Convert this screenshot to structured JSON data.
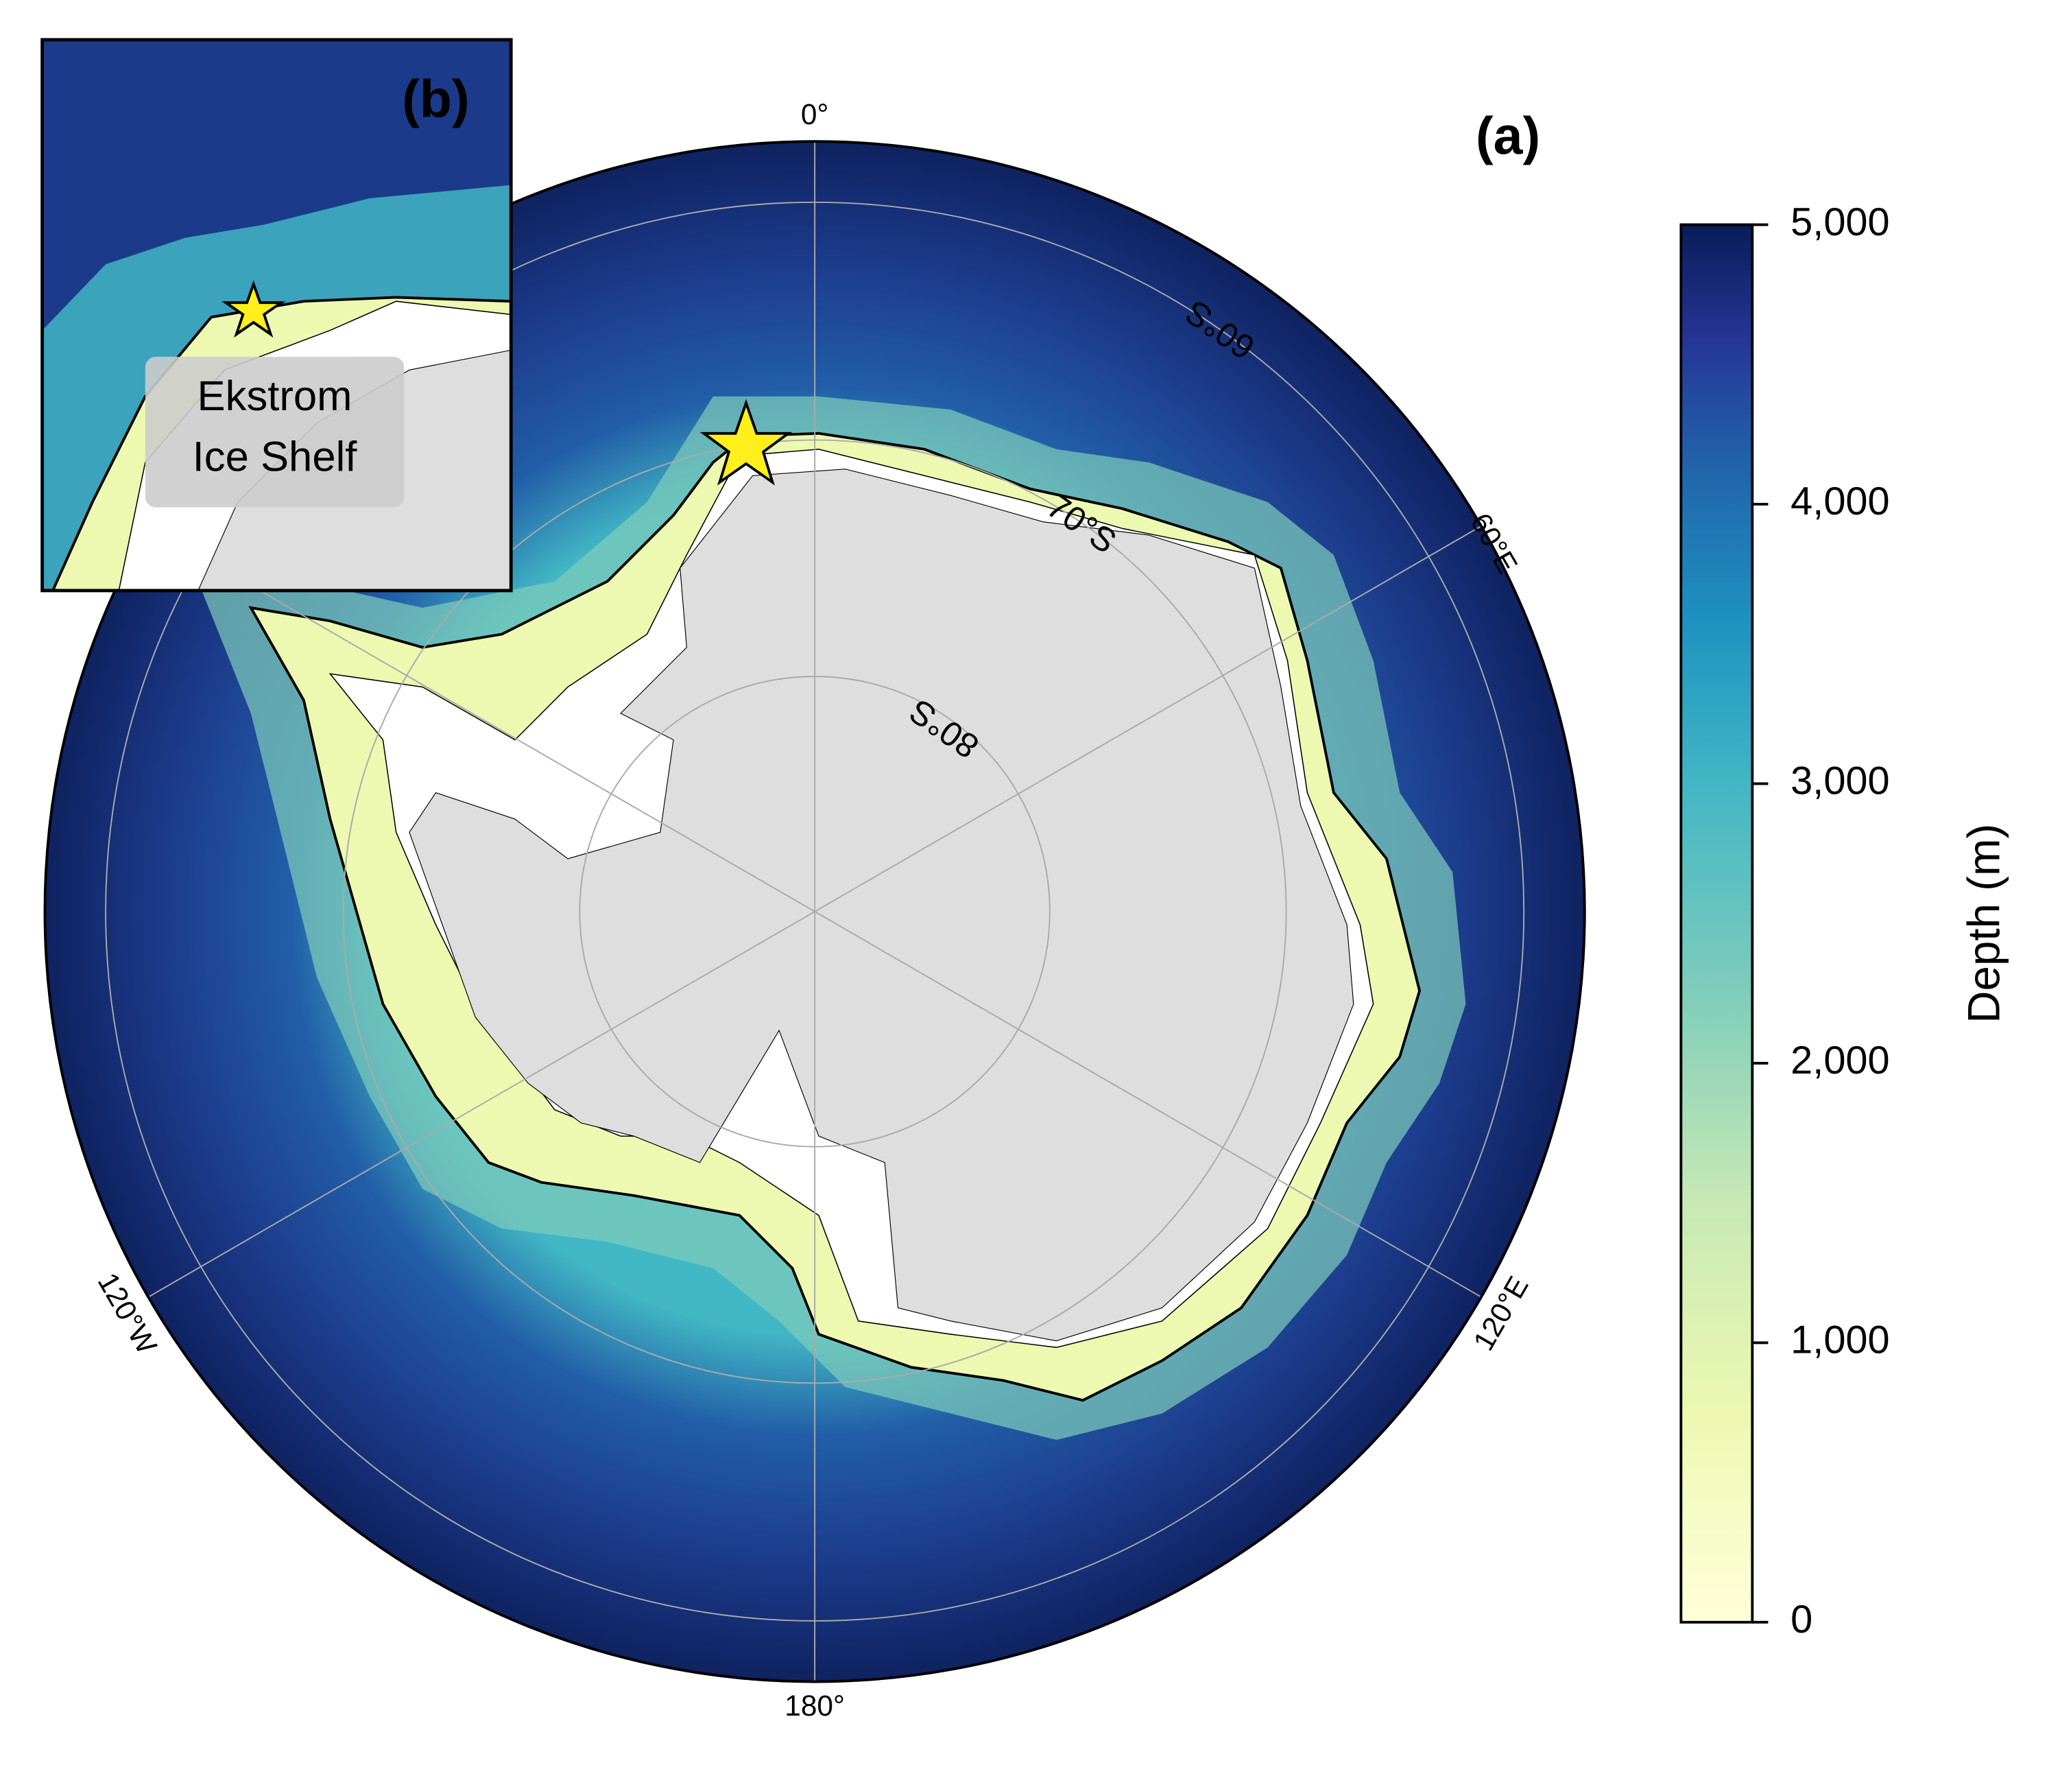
{
  "map": {
    "panel_a": "(a)",
    "panel_b": "(b)",
    "latitude_labels": [
      "60°S",
      "70°S",
      "80°S"
    ],
    "longitude_labels": [
      "0°",
      "60°E",
      "120°E",
      "180°",
      "120°W"
    ],
    "inset_label": [
      "Ekstrom",
      "Ice Shelf"
    ]
  },
  "colorbar": {
    "label": "Depth (m)",
    "lim": [
      0,
      5000
    ],
    "ticks": [
      0,
      {
        "value": 1000,
        "label": "1,000"
      },
      {
        "value": 2000,
        "label": "2,000"
      },
      {
        "value": 3000,
        "label": "3,000"
      },
      {
        "value": 4000,
        "label": "4,000"
      },
      {
        "value": 5000,
        "label": "5,000"
      }
    ]
  }
}
